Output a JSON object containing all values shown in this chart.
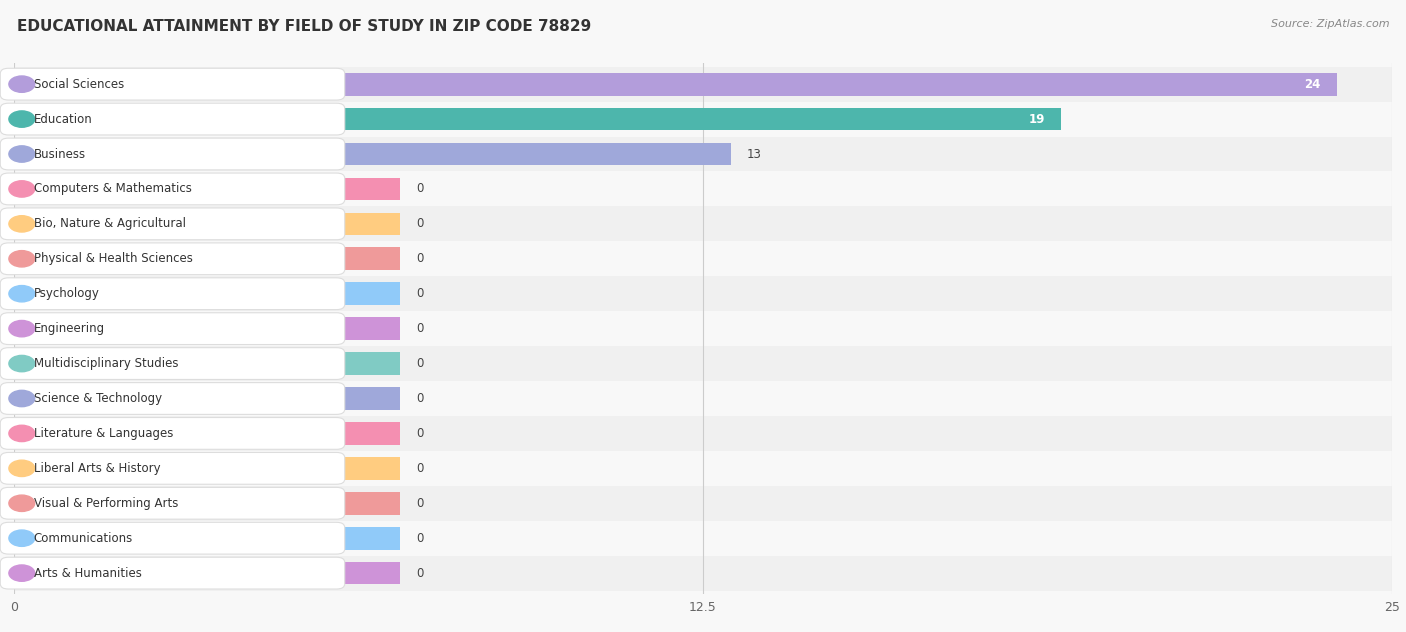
{
  "title": "EDUCATIONAL ATTAINMENT BY FIELD OF STUDY IN ZIP CODE 78829",
  "source": "Source: ZipAtlas.com",
  "categories": [
    "Social Sciences",
    "Education",
    "Business",
    "Computers & Mathematics",
    "Bio, Nature & Agricultural",
    "Physical & Health Sciences",
    "Psychology",
    "Engineering",
    "Multidisciplinary Studies",
    "Science & Technology",
    "Literature & Languages",
    "Liberal Arts & History",
    "Visual & Performing Arts",
    "Communications",
    "Arts & Humanities"
  ],
  "values": [
    24,
    19,
    13,
    0,
    0,
    0,
    0,
    0,
    0,
    0,
    0,
    0,
    0,
    0,
    0
  ],
  "bar_colors": [
    "#b39ddb",
    "#4db6ac",
    "#9fa8da",
    "#f48fb1",
    "#ffcc80",
    "#ef9a9a",
    "#90caf9",
    "#ce93d8",
    "#80cbc4",
    "#9fa8da",
    "#f48fb1",
    "#ffcc80",
    "#ef9a9a",
    "#90caf9",
    "#ce93d8"
  ],
  "xlim": [
    0,
    25
  ],
  "xticks": [
    0,
    12.5,
    25
  ],
  "background_color": "#f8f8f8",
  "row_bg_even": "#f0f0f0",
  "row_bg_odd": "#f8f8f8",
  "title_fontsize": 11,
  "label_fontsize": 8.5,
  "value_fontsize": 8.5,
  "bar_height": 0.65
}
